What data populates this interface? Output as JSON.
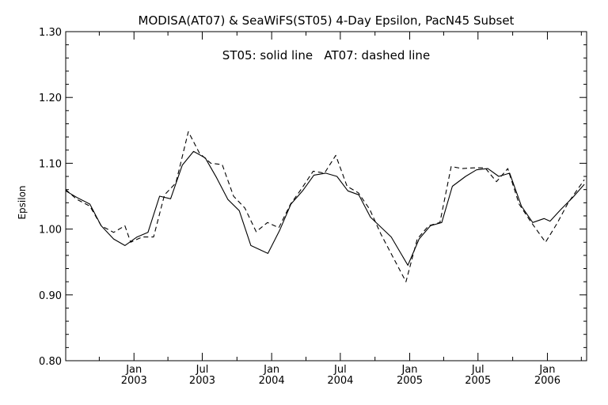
{
  "chart_data": {
    "type": "line",
    "title": "MODISA(AT07) & SeaWiFS(ST05) 4-Day Epsilon, PacN45 Subset",
    "annotation": "ST05: solid line   AT07: dashed line",
    "ylabel": "Epsilon",
    "xlabel": "",
    "xlim": [
      "2002-07-04",
      "2006-04-15"
    ],
    "ylim": [
      0.8,
      1.3
    ],
    "yticks": [
      {
        "value": 0.8,
        "label": "0.80"
      },
      {
        "value": 0.9,
        "label": "0.90"
      },
      {
        "value": 1.0,
        "label": "1.00"
      },
      {
        "value": 1.1,
        "label": "1.10"
      },
      {
        "value": 1.2,
        "label": "1.20"
      },
      {
        "value": 1.3,
        "label": "1.30"
      }
    ],
    "xticks": [
      {
        "value": "2003-01-01",
        "month": "Jan",
        "year": "2003"
      },
      {
        "value": "2003-07-01",
        "month": "Jul",
        "year": "2003"
      },
      {
        "value": "2004-01-01",
        "month": "Jan",
        "year": "2004"
      },
      {
        "value": "2004-07-01",
        "month": "Jul",
        "year": "2004"
      },
      {
        "value": "2005-01-01",
        "month": "Jan",
        "year": "2005"
      },
      {
        "value": "2005-07-01",
        "month": "Jul",
        "year": "2005"
      },
      {
        "value": "2006-01-01",
        "month": "Jan",
        "year": "2006"
      }
    ],
    "series": [
      {
        "name": "ST05",
        "style": "solid",
        "color": "#000000",
        "points": [
          [
            "2002-07-04",
            1.058
          ],
          [
            "2002-08-03",
            1.048
          ],
          [
            "2002-09-06",
            1.038
          ],
          [
            "2002-10-06",
            1.005
          ],
          [
            "2002-11-08",
            0.985
          ],
          [
            "2002-12-08",
            0.975
          ],
          [
            "2003-01-09",
            0.988
          ],
          [
            "2003-02-07",
            0.995
          ],
          [
            "2003-03-10",
            1.05
          ],
          [
            "2003-04-08",
            1.046
          ],
          [
            "2003-05-09",
            1.097
          ],
          [
            "2003-06-08",
            1.118
          ],
          [
            "2003-07-09",
            1.108
          ],
          [
            "2003-08-08",
            1.078
          ],
          [
            "2003-09-07",
            1.045
          ],
          [
            "2003-10-07",
            1.028
          ],
          [
            "2003-11-07",
            0.975
          ],
          [
            "2003-12-22",
            0.963
          ],
          [
            "2004-01-22",
            0.998
          ],
          [
            "2004-02-21",
            1.038
          ],
          [
            "2004-03-23",
            1.058
          ],
          [
            "2004-04-22",
            1.082
          ],
          [
            "2004-05-23",
            1.085
          ],
          [
            "2004-06-22",
            1.08
          ],
          [
            "2004-07-21",
            1.058
          ],
          [
            "2004-08-19",
            1.052
          ],
          [
            "2004-09-19",
            1.018
          ],
          [
            "2004-11-13",
            0.988
          ],
          [
            "2004-12-27",
            0.945
          ],
          [
            "2005-01-26",
            0.985
          ],
          [
            "2005-02-25",
            1.005
          ],
          [
            "2005-03-27",
            1.01
          ],
          [
            "2005-04-24",
            1.065
          ],
          [
            "2005-05-29",
            1.08
          ],
          [
            "2005-06-27",
            1.09
          ],
          [
            "2005-07-27",
            1.092
          ],
          [
            "2005-08-25",
            1.08
          ],
          [
            "2005-09-23",
            1.085
          ],
          [
            "2005-10-24",
            1.035
          ],
          [
            "2005-11-23",
            1.01
          ],
          [
            "2005-12-23",
            1.016
          ],
          [
            "2006-01-08",
            1.012
          ],
          [
            "2006-02-06",
            1.03
          ],
          [
            "2006-03-09",
            1.048
          ],
          [
            "2006-04-09",
            1.068
          ]
        ]
      },
      {
        "name": "AT07",
        "style": "dashed",
        "color": "#000000",
        "points": [
          [
            "2002-07-04",
            1.06
          ],
          [
            "2002-08-03",
            1.045
          ],
          [
            "2002-09-06",
            1.035
          ],
          [
            "2002-10-06",
            1.005
          ],
          [
            "2002-11-08",
            0.995
          ],
          [
            "2002-12-08",
            1.005
          ],
          [
            "2002-12-23",
            0.98
          ],
          [
            "2003-01-23",
            0.988
          ],
          [
            "2003-02-22",
            0.988
          ],
          [
            "2003-03-23",
            1.052
          ],
          [
            "2003-04-22",
            1.07
          ],
          [
            "2003-05-25",
            1.148
          ],
          [
            "2003-06-24",
            1.115
          ],
          [
            "2003-07-24",
            1.1
          ],
          [
            "2003-08-23",
            1.098
          ],
          [
            "2003-09-22",
            1.05
          ],
          [
            "2003-10-22",
            1.032
          ],
          [
            "2003-11-21",
            0.996
          ],
          [
            "2003-12-21",
            1.01
          ],
          [
            "2004-01-20",
            1.002
          ],
          [
            "2004-02-20",
            1.038
          ],
          [
            "2004-03-21",
            1.062
          ],
          [
            "2004-04-20",
            1.088
          ],
          [
            "2004-05-20",
            1.085
          ],
          [
            "2004-06-19",
            1.112
          ],
          [
            "2004-07-19",
            1.065
          ],
          [
            "2004-08-18",
            1.055
          ],
          [
            "2004-09-17",
            1.03
          ],
          [
            "2004-10-17",
            0.992
          ],
          [
            "2004-12-22",
            0.92
          ],
          [
            "2005-01-21",
            0.985
          ],
          [
            "2005-02-20",
            1.005
          ],
          [
            "2005-03-22",
            1.01
          ],
          [
            "2005-04-21",
            1.095
          ],
          [
            "2005-05-21",
            1.092
          ],
          [
            "2005-06-20",
            1.093
          ],
          [
            "2005-07-20",
            1.093
          ],
          [
            "2005-08-19",
            1.072
          ],
          [
            "2005-09-18",
            1.092
          ],
          [
            "2005-10-18",
            1.038
          ],
          [
            "2005-11-17",
            1.012
          ],
          [
            "2005-12-27",
            0.98
          ],
          [
            "2006-01-26",
            1.008
          ],
          [
            "2006-02-25",
            1.04
          ],
          [
            "2006-04-09",
            1.075
          ]
        ]
      }
    ]
  }
}
